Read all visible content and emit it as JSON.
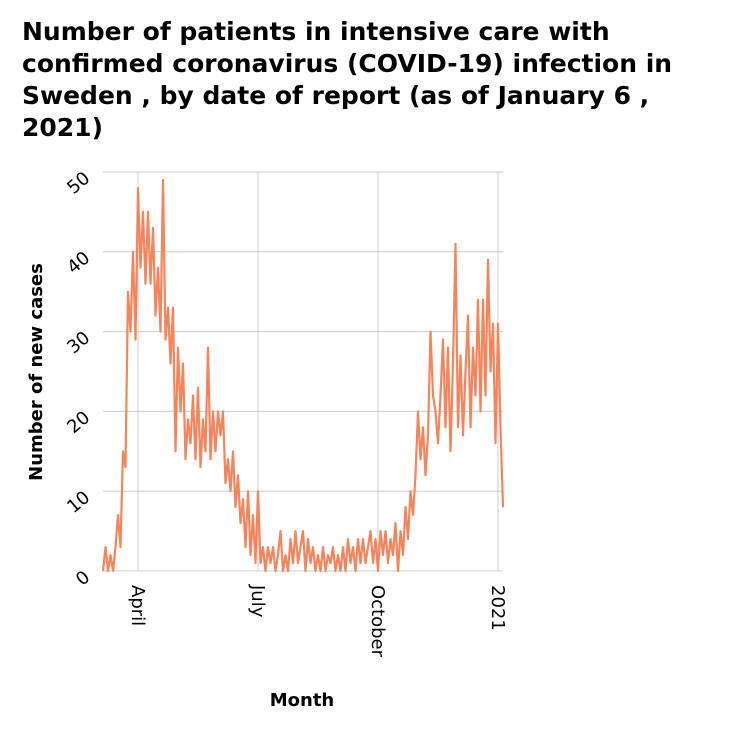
{
  "chart_data": {
    "type": "line",
    "title": "Number of patients in intensive care with confirmed coronavirus (COVID-19) infection in Sweden , by date of report (as of January 6 , 2021)",
    "x_label": "Month",
    "y_label": "Number of new cases",
    "categories": [
      null,
      null,
      null,
      null,
      null,
      null,
      null,
      null,
      null,
      null,
      null,
      null,
      null,
      null,
      "April",
      null,
      null,
      null,
      null,
      null,
      null,
      null,
      null,
      null,
      null,
      null,
      null,
      null,
      null,
      null,
      null,
      null,
      null,
      null,
      null,
      null,
      null,
      null,
      null,
      null,
      null,
      null,
      null,
      null,
      null,
      null,
      null,
      null,
      null,
      null,
      null,
      null,
      null,
      null,
      null,
      null,
      null,
      null,
      null,
      null,
      null,
      null,
      "July",
      null,
      null,
      null,
      null,
      null,
      null,
      null,
      null,
      null,
      null,
      null,
      null,
      null,
      null,
      null,
      null,
      null,
      null,
      null,
      null,
      null,
      null,
      null,
      null,
      null,
      null,
      null,
      null,
      null,
      null,
      null,
      null,
      null,
      null,
      null,
      null,
      null,
      null,
      null,
      null,
      null,
      null,
      null,
      null,
      null,
      null,
      null,
      "October",
      null,
      null,
      null,
      null,
      null,
      null,
      null,
      null,
      null,
      null,
      null,
      null,
      null,
      null,
      null,
      null,
      null,
      null,
      null,
      null,
      null,
      null,
      null,
      null,
      null,
      null,
      null,
      null,
      null,
      null,
      null,
      null,
      null,
      null,
      null,
      null,
      null,
      null,
      null,
      null,
      null,
      null,
      null,
      null,
      null,
      null,
      null,
      "2021",
      null,
      null
    ],
    "series": [
      {
        "name": "Number of new cases",
        "color": "#f4845c",
        "values": [
          0,
          3,
          0,
          2,
          0,
          3,
          7,
          3,
          15,
          13,
          35,
          30,
          40,
          29,
          48,
          38,
          45,
          36,
          45,
          36,
          43,
          32,
          38,
          30,
          49,
          29,
          33,
          26,
          33,
          15,
          28,
          20,
          26,
          14,
          19,
          16,
          22,
          14,
          23,
          13,
          19,
          15,
          28,
          14,
          20,
          15,
          20,
          17,
          20,
          11,
          14,
          10,
          15,
          8,
          12,
          6,
          9,
          3,
          10,
          2,
          7,
          1,
          10,
          1,
          3,
          0,
          3,
          1,
          3,
          0,
          2,
          5,
          0,
          2,
          0,
          4,
          1,
          5,
          1,
          3,
          5,
          0,
          4,
          1,
          3,
          0,
          2,
          0,
          3,
          0,
          2,
          1,
          3,
          0,
          2,
          0,
          3,
          0,
          4,
          1,
          3,
          0,
          4,
          1,
          4,
          1,
          3,
          5,
          1,
          4,
          0,
          5,
          2,
          5,
          1,
          4,
          2,
          6,
          0,
          5,
          2,
          8,
          4,
          10,
          7,
          12,
          20,
          14,
          18,
          12,
          17,
          30,
          22,
          20,
          16,
          22,
          29,
          18,
          28,
          15,
          26,
          41,
          18,
          27,
          17,
          25,
          32,
          18,
          28,
          22,
          34,
          20,
          34,
          22,
          39,
          25,
          31,
          16,
          31,
          18,
          8
        ]
      }
    ],
    "ylim": [
      0,
      50
    ],
    "yticks": [
      0,
      10,
      20,
      30,
      40,
      50
    ],
    "grid": true
  }
}
